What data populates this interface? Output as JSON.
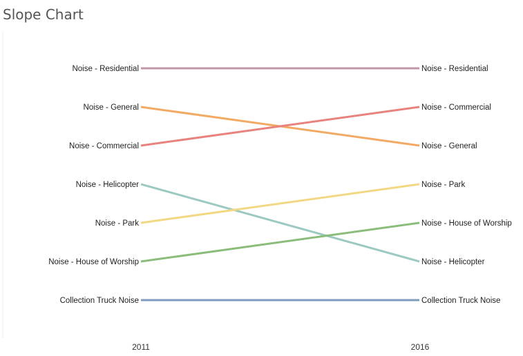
{
  "title": "Slope Chart",
  "chart_data": {
    "type": "line",
    "title": "Slope Chart",
    "x": [
      "2011",
      "2016"
    ],
    "series": [
      {
        "name": "Noise - Residential",
        "values": [
          1,
          1
        ],
        "color": "#c196aa"
      },
      {
        "name": "Noise - General",
        "values": [
          2,
          3
        ],
        "color": "#f2aa63"
      },
      {
        "name": "Noise - Commercial",
        "values": [
          3,
          2
        ],
        "color": "#e8827d"
      },
      {
        "name": "Noise - Helicopter",
        "values": [
          4,
          6
        ],
        "color": "#9dc9c3"
      },
      {
        "name": "Noise - Park",
        "values": [
          5,
          4
        ],
        "color": "#f3d884"
      },
      {
        "name": "Noise - House of Worship",
        "values": [
          6,
          5
        ],
        "color": "#8bbd7a"
      },
      {
        "name": "Collection Truck Noise",
        "values": [
          7,
          7
        ],
        "color": "#7f9bbd"
      }
    ],
    "ylim": [
      1,
      7
    ],
    "y_inverted": true,
    "grid": false,
    "legend": "none"
  }
}
